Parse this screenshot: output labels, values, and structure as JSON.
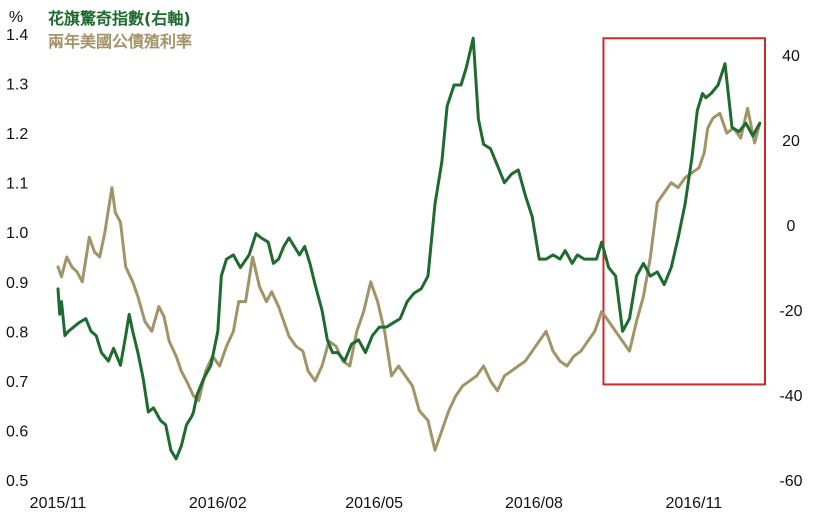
{
  "chart_data": {
    "type": "line",
    "unit_label": "%",
    "legend_position": "top-left",
    "grid": false,
    "colors": {
      "citi": "#1e6b2f",
      "yield": "#a39468",
      "highlight": "#cc2a2a"
    },
    "xlim": [
      "2015-11-01",
      "2016-12-12"
    ],
    "ylim_left": [
      0.5,
      1.4
    ],
    "ylim_right": [
      -60,
      45
    ],
    "yticks_left": [
      "0.5",
      "0.6",
      "0.7",
      "0.8",
      "0.9",
      "1.0",
      "1.1",
      "1.2",
      "1.3",
      "1.4"
    ],
    "yticks_right": [
      "-60",
      "-40",
      "-20",
      "0",
      "20",
      "40"
    ],
    "xticks": [
      {
        "label": "2015/11",
        "date": "2015-11-01"
      },
      {
        "label": "2016/02",
        "date": "2016-02-01"
      },
      {
        "label": "2016/05",
        "date": "2016-05-01"
      },
      {
        "label": "2016/08",
        "date": "2016-08-01"
      },
      {
        "label": "2016/11",
        "date": "2016-11-01"
      }
    ],
    "highlight_box": {
      "x": [
        "2016-09-10",
        "2016-12-12"
      ],
      "y_right": [
        -37.5,
        44
      ]
    },
    "series": [
      {
        "name": "花旗驚奇指數(右軸)",
        "axis": "right",
        "x": [
          "2015-11-01",
          "2015-11-02",
          "2015-11-03",
          "2015-11-05",
          "2015-11-07",
          "2015-11-10",
          "2015-11-13",
          "2015-11-17",
          "2015-11-20",
          "2015-11-23",
          "2015-11-26",
          "2015-11-30",
          "2015-12-03",
          "2015-12-07",
          "2015-12-10",
          "2015-12-12",
          "2015-12-14",
          "2015-12-17",
          "2015-12-20",
          "2015-12-23",
          "2015-12-26",
          "2015-12-30",
          "2016-01-02",
          "2016-01-05",
          "2016-01-08",
          "2016-01-11",
          "2016-01-14",
          "2016-01-17",
          "2016-01-18",
          "2016-01-20",
          "2016-01-24",
          "2016-01-28",
          "2016-02-01",
          "2016-02-03",
          "2016-02-06",
          "2016-02-10",
          "2016-02-14",
          "2016-02-19",
          "2016-02-23",
          "2016-02-26",
          "2016-03-01",
          "2016-03-04",
          "2016-03-07",
          "2016-03-10",
          "2016-03-13",
          "2016-03-16",
          "2016-03-19",
          "2016-03-22",
          "2016-03-25",
          "2016-03-28",
          "2016-04-01",
          "2016-04-04",
          "2016-04-07",
          "2016-04-10",
          "2016-04-14",
          "2016-04-18",
          "2016-04-22",
          "2016-04-26",
          "2016-04-30",
          "2016-05-04",
          "2016-05-08",
          "2016-05-12",
          "2016-05-16",
          "2016-05-20",
          "2016-05-24",
          "2016-05-28",
          "2016-06-01",
          "2016-06-05",
          "2016-06-09",
          "2016-06-12",
          "2016-06-16",
          "2016-06-20",
          "2016-06-23",
          "2016-06-27",
          "2016-06-30",
          "2016-07-03",
          "2016-07-07",
          "2016-07-11",
          "2016-07-15",
          "2016-07-19",
          "2016-07-23",
          "2016-07-27",
          "2016-07-31",
          "2016-08-04",
          "2016-08-08",
          "2016-08-12",
          "2016-08-16",
          "2016-08-19",
          "2016-08-23",
          "2016-08-26",
          "2016-08-30",
          "2016-09-02",
          "2016-09-06",
          "2016-09-09",
          "2016-09-13",
          "2016-09-17",
          "2016-09-21",
          "2016-09-25",
          "2016-09-29",
          "2016-10-03",
          "2016-10-07",
          "2016-10-11",
          "2016-10-15",
          "2016-10-19",
          "2016-10-23",
          "2016-10-27",
          "2016-10-31",
          "2016-11-03",
          "2016-11-06",
          "2016-11-08",
          "2016-11-11",
          "2016-11-15",
          "2016-11-19",
          "2016-11-23",
          "2016-11-27",
          "2016-12-01",
          "2016-12-05",
          "2016-12-09"
        ],
        "y": [
          -15,
          -21,
          -18,
          -26,
          -25,
          -24,
          -23,
          -22,
          -25,
          -26,
          -30,
          -32,
          -29,
          -33,
          -26,
          -21,
          -25,
          -30,
          -36,
          -44,
          -43,
          -46,
          -47,
          -53,
          -55,
          -52,
          -47,
          -45,
          -44,
          -40,
          -36,
          -33,
          -25,
          -12,
          -8,
          -7,
          -10,
          -7,
          -2,
          -3,
          -4,
          -9,
          -8,
          -5,
          -3,
          -5,
          -7,
          -5,
          -9,
          -14,
          -20,
          -27,
          -30,
          -30,
          -32,
          -28,
          -27,
          -30,
          -26,
          -24,
          -24,
          -23,
          -22,
          -18,
          -16,
          -15,
          -12,
          5,
          15,
          28,
          33,
          33,
          37,
          44,
          25,
          19,
          18,
          14,
          10,
          12,
          13,
          7,
          2,
          -8,
          -8,
          -7,
          -8,
          -6,
          -9,
          -7,
          -8,
          -8,
          -8,
          -4,
          -10,
          -12,
          -25,
          -22,
          -12,
          -9,
          -12,
          -11,
          -14,
          -10,
          -3,
          5,
          16,
          27,
          31,
          30,
          31,
          33,
          38,
          23,
          22,
          24,
          21,
          24
        ]
      },
      {
        "name": "兩年美國公債殖利率",
        "axis": "left",
        "x": [
          "2015-11-01",
          "2015-11-03",
          "2015-11-06",
          "2015-11-09",
          "2015-11-12",
          "2015-11-15",
          "2015-11-19",
          "2015-11-22",
          "2015-11-25",
          "2015-11-28",
          "2015-12-02",
          "2015-12-04",
          "2015-12-07",
          "2015-12-10",
          "2015-12-14",
          "2015-12-17",
          "2015-12-21",
          "2015-12-25",
          "2015-12-29",
          "2016-01-01",
          "2016-01-04",
          "2016-01-08",
          "2016-01-11",
          "2016-01-14",
          "2016-01-18",
          "2016-01-21",
          "2016-01-25",
          "2016-01-29",
          "2016-02-02",
          "2016-02-06",
          "2016-02-10",
          "2016-02-13",
          "2016-02-17",
          "2016-02-21",
          "2016-02-25",
          "2016-02-29",
          "2016-03-03",
          "2016-03-07",
          "2016-03-10",
          "2016-03-13",
          "2016-03-17",
          "2016-03-21",
          "2016-03-24",
          "2016-03-28",
          "2016-04-01",
          "2016-04-05",
          "2016-04-09",
          "2016-04-13",
          "2016-04-17",
          "2016-04-21",
          "2016-04-25",
          "2016-04-29",
          "2016-05-03",
          "2016-05-07",
          "2016-05-11",
          "2016-05-15",
          "2016-05-19",
          "2016-05-23",
          "2016-05-27",
          "2016-06-01",
          "2016-06-05",
          "2016-06-09",
          "2016-06-13",
          "2016-06-17",
          "2016-06-21",
          "2016-06-25",
          "2016-06-29",
          "2016-07-03",
          "2016-07-07",
          "2016-07-11",
          "2016-07-15",
          "2016-07-19",
          "2016-07-23",
          "2016-07-27",
          "2016-07-31",
          "2016-08-04",
          "2016-08-08",
          "2016-08-12",
          "2016-08-16",
          "2016-08-20",
          "2016-08-24",
          "2016-08-28",
          "2016-09-01",
          "2016-09-05",
          "2016-09-09",
          "2016-09-13",
          "2016-09-17",
          "2016-09-21",
          "2016-09-25",
          "2016-09-29",
          "2016-10-03",
          "2016-10-07",
          "2016-10-11",
          "2016-10-15",
          "2016-10-19",
          "2016-10-23",
          "2016-10-27",
          "2016-10-31",
          "2016-11-04",
          "2016-11-07",
          "2016-11-09",
          "2016-11-12",
          "2016-11-16",
          "2016-11-20",
          "2016-11-24",
          "2016-11-28",
          "2016-12-02",
          "2016-12-06",
          "2016-12-09"
        ],
        "y": [
          0.93,
          0.91,
          0.95,
          0.93,
          0.92,
          0.9,
          0.99,
          0.96,
          0.95,
          1.0,
          1.09,
          1.04,
          1.02,
          0.93,
          0.9,
          0.87,
          0.82,
          0.8,
          0.85,
          0.83,
          0.78,
          0.75,
          0.72,
          0.7,
          0.67,
          0.66,
          0.72,
          0.75,
          0.73,
          0.77,
          0.8,
          0.86,
          0.86,
          0.95,
          0.89,
          0.86,
          0.88,
          0.85,
          0.82,
          0.79,
          0.77,
          0.76,
          0.72,
          0.7,
          0.73,
          0.78,
          0.77,
          0.74,
          0.73,
          0.8,
          0.84,
          0.9,
          0.86,
          0.8,
          0.71,
          0.73,
          0.71,
          0.69,
          0.64,
          0.62,
          0.56,
          0.6,
          0.64,
          0.67,
          0.69,
          0.7,
          0.71,
          0.73,
          0.7,
          0.68,
          0.71,
          0.72,
          0.73,
          0.74,
          0.76,
          0.78,
          0.8,
          0.76,
          0.74,
          0.73,
          0.75,
          0.76,
          0.78,
          0.8,
          0.84,
          0.82,
          0.8,
          0.78,
          0.76,
          0.82,
          0.87,
          0.95,
          1.06,
          1.08,
          1.1,
          1.09,
          1.11,
          1.12,
          1.13,
          1.16,
          1.21,
          1.23,
          1.24,
          1.2,
          1.21,
          1.19,
          1.25,
          1.18,
          1.22
        ]
      }
    ]
  }
}
